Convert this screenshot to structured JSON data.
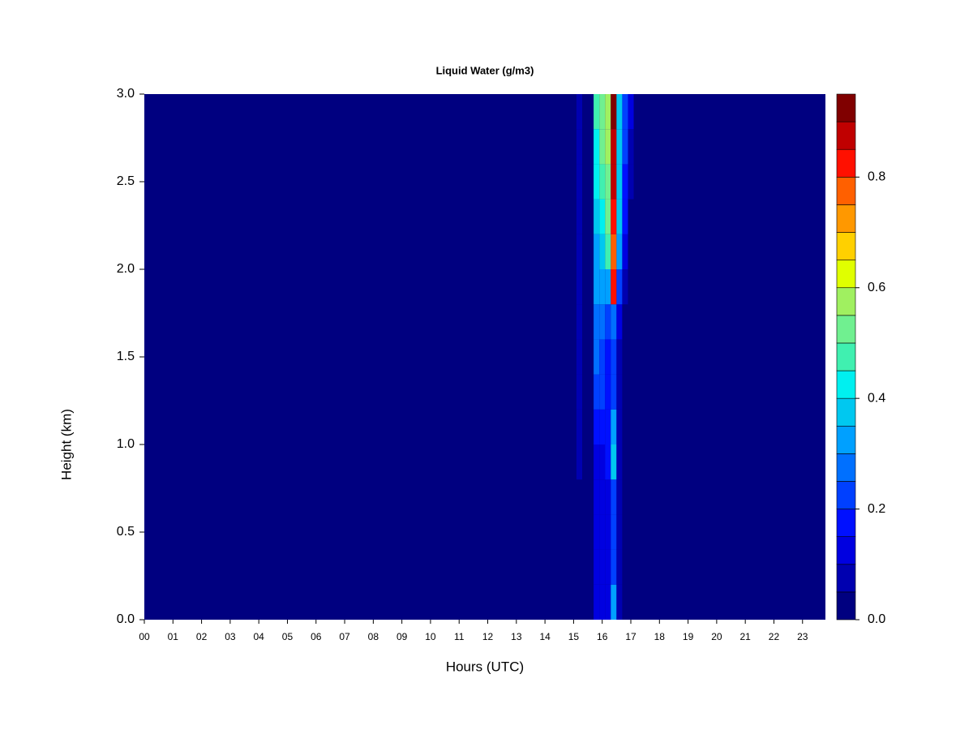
{
  "chart_data": {
    "type": "heatmap",
    "title": "Liquid Water (g/m3)",
    "x_label": "Hours (UTC)",
    "y_label": "Height (km)",
    "x": [
      15.2,
      15.8,
      16.0,
      16.2,
      16.4,
      16.6,
      16.8,
      17.0
    ],
    "y": [
      0.1,
      0.3,
      0.5,
      0.7,
      0.9,
      1.1,
      1.3,
      1.5,
      1.7,
      1.9,
      2.1,
      2.3,
      2.5,
      2.7,
      2.9
    ],
    "z": [
      [
        0.0,
        0.1,
        0.1,
        0.1,
        0.3,
        0.05,
        0.0,
        0.0
      ],
      [
        0.0,
        0.1,
        0.1,
        0.1,
        0.2,
        0.05,
        0.0,
        0.0
      ],
      [
        0.0,
        0.1,
        0.1,
        0.1,
        0.2,
        0.05,
        0.0,
        0.0
      ],
      [
        0.0,
        0.1,
        0.1,
        0.1,
        0.2,
        0.05,
        0.0,
        0.0
      ],
      [
        0.05,
        0.1,
        0.1,
        0.15,
        0.35,
        0.05,
        0.0,
        0.0
      ],
      [
        0.05,
        0.15,
        0.15,
        0.15,
        0.3,
        0.05,
        0.0,
        0.0
      ],
      [
        0.05,
        0.2,
        0.2,
        0.15,
        0.2,
        0.05,
        0.0,
        0.0
      ],
      [
        0.05,
        0.25,
        0.2,
        0.15,
        0.2,
        0.05,
        0.0,
        0.0
      ],
      [
        0.05,
        0.25,
        0.25,
        0.2,
        0.25,
        0.1,
        0.0,
        0.0
      ],
      [
        0.05,
        0.3,
        0.3,
        0.3,
        0.8,
        0.2,
        0.05,
        0.0
      ],
      [
        0.05,
        0.3,
        0.35,
        0.45,
        0.75,
        0.3,
        0.1,
        0.0
      ],
      [
        0.05,
        0.35,
        0.4,
        0.5,
        0.8,
        0.35,
        0.15,
        0.0
      ],
      [
        0.05,
        0.4,
        0.45,
        0.5,
        0.85,
        0.35,
        0.15,
        0.05
      ],
      [
        0.05,
        0.4,
        0.5,
        0.55,
        0.85,
        0.35,
        0.2,
        0.05
      ],
      [
        0.05,
        0.45,
        0.5,
        0.55,
        0.9,
        0.35,
        0.2,
        0.1
      ]
    ],
    "xlim": [
      0,
      23.8
    ],
    "xticks": [
      {
        "value": 0,
        "label": "00"
      },
      {
        "value": 1,
        "label": "01"
      },
      {
        "value": 2,
        "label": "02"
      },
      {
        "value": 3,
        "label": "03"
      },
      {
        "value": 4,
        "label": "04"
      },
      {
        "value": 5,
        "label": "05"
      },
      {
        "value": 6,
        "label": "06"
      },
      {
        "value": 7,
        "label": "07"
      },
      {
        "value": 8,
        "label": "08"
      },
      {
        "value": 9,
        "label": "09"
      },
      10,
      11,
      12,
      13,
      14,
      15,
      16,
      17,
      18,
      19,
      20,
      21,
      22,
      23
    ],
    "ylim": [
      0,
      3
    ],
    "yticks": [
      {
        "value": 0,
        "label": "0.0"
      },
      0.5,
      {
        "value": 1,
        "label": "1.0"
      },
      1.5,
      {
        "value": 2,
        "label": "2.0"
      },
      2.5,
      {
        "value": 3,
        "label": "3.0"
      }
    ],
    "levels": [
      0,
      0.05,
      0.1,
      0.15,
      0.2,
      0.25,
      0.3,
      0.35,
      0.4,
      0.45,
      0.5,
      0.55,
      0.6,
      0.65,
      0.7,
      0.75,
      0.8,
      0.85,
      0.9,
      0.95
    ],
    "colors": [
      "#000080",
      "#0000b0",
      "#0000e0",
      "#0010ff",
      "#0040ff",
      "#0070ff",
      "#00a0ff",
      "#00c8f0",
      "#00f0f0",
      "#40f0b0",
      "#70f090",
      "#a0f060",
      "#e0ff00",
      "#ffd000",
      "#ff9800",
      "#ff6000",
      "#ff1000",
      "#c00000",
      "#800000"
    ],
    "colorbar_ticks": [
      {
        "value": 0,
        "label": "0.0"
      },
      0.2,
      0.4,
      0.6,
      0.8
    ]
  }
}
